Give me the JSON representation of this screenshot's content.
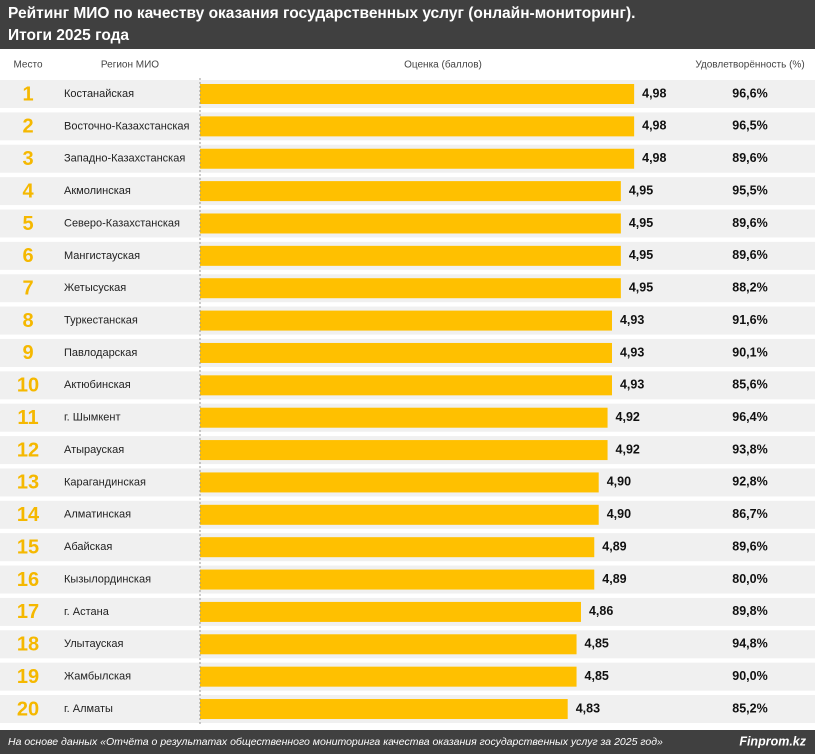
{
  "chart_data": {
    "type": "bar",
    "title": [
      "Рейтинг МИО по качеству оказания государственных услуг (онлайн-мониторинг).",
      "Итоги 2025 года"
    ],
    "headers": [
      "Место",
      "Регион МИО",
      "Оценка (баллов)",
      "Удовлетворённость (%)"
    ],
    "ranks": [
      1,
      2,
      3,
      4,
      5,
      6,
      7,
      8,
      9,
      10,
      11,
      12,
      13,
      14,
      15,
      16,
      17,
      18,
      19,
      20
    ],
    "categories": [
      "Костанайская",
      "Восточно-Казахстанская",
      "Западно-Казахстанская",
      "Акмолинская",
      "Северо-Казахстанская",
      "Мангистауская",
      "Жетысуская",
      "Туркестанская",
      "Павлодарская",
      "Актюбинская",
      "г. Шымкент",
      "Атырауская",
      "Карагандинская",
      "Алматинская",
      "Абайская",
      "Кызылординская",
      "г. Астана",
      "Улытауская",
      "Жамбылская",
      "г. Алматы"
    ],
    "series": [
      {
        "name": "Оценка (баллов)",
        "color": "#ffc000",
        "values": [
          4.98,
          4.98,
          4.98,
          4.95,
          4.95,
          4.95,
          4.95,
          4.93,
          4.93,
          4.93,
          4.92,
          4.92,
          4.9,
          4.9,
          4.89,
          4.89,
          4.86,
          4.85,
          4.85,
          4.83
        ],
        "value_labels": [
          "4,98",
          "4,98",
          "4,98",
          "4,95",
          "4,95",
          "4,95",
          "4,95",
          "4,93",
          "4,93",
          "4,93",
          "4,92",
          "4,92",
          "4,90",
          "4,90",
          "4,89",
          "4,89",
          "4,86",
          "4,85",
          "4,85",
          "4,83"
        ]
      }
    ],
    "satisfaction": {
      "name": "Удовлетворённость (%)",
      "values": [
        96.6,
        96.5,
        89.6,
        95.5,
        89.6,
        89.6,
        88.2,
        91.6,
        90.1,
        85.6,
        96.4,
        93.8,
        92.8,
        86.7,
        89.6,
        80.0,
        89.8,
        94.8,
        90.0,
        85.2
      ],
      "value_labels": [
        "96,6%",
        "96,5%",
        "89,6%",
        "95,5%",
        "89,6%",
        "89,6%",
        "88,2%",
        "91,6%",
        "90,1%",
        "85,6%",
        "96,4%",
        "93,8%",
        "92,8%",
        "86,7%",
        "89,6%",
        "80,0%",
        "89,8%",
        "94,8%",
        "90,0%",
        "85,2%"
      ]
    },
    "xlim": [
      4,
      5
    ],
    "rank_color": "#f5b800",
    "source": "На основе данных «Отчёта о результатах общественного мониторинга качества оказания государственных услуг за 2025 год»",
    "brand": "Finprom.kz"
  }
}
